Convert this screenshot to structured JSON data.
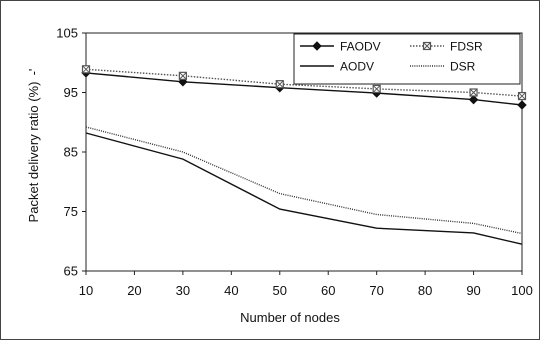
{
  "chart_data": {
    "type": "line",
    "xlabel": "Number of nodes",
    "ylabel": "Packet delivery ratio (%)",
    "ylabel_suffix": "-'",
    "x": [
      10,
      30,
      50,
      70,
      90,
      100
    ],
    "xticks": [
      "10",
      "20",
      "30",
      "40",
      "50",
      "60",
      "70",
      "80",
      "90",
      "100"
    ],
    "xtick_values": [
      10,
      20,
      30,
      40,
      50,
      60,
      70,
      80,
      90,
      100
    ],
    "yticks": [
      "65",
      "75",
      "85",
      "95",
      "105"
    ],
    "ytick_values": [
      65,
      75,
      85,
      95,
      105
    ],
    "xlim": [
      10,
      100
    ],
    "ylim": [
      65,
      105
    ],
    "grid": "none",
    "legend_position": "top-right",
    "series": [
      {
        "name": "FAODV",
        "values": [
          98.3,
          96.8,
          95.8,
          94.9,
          93.8,
          92.9
        ],
        "color": "#111111",
        "dash": "",
        "marker": "diamond"
      },
      {
        "name": "FDSR",
        "values": [
          98.9,
          97.8,
          96.4,
          95.6,
          95.0,
          94.4
        ],
        "color": "#555555",
        "dash": "1.5,1.5",
        "marker": "square-x"
      },
      {
        "name": "AODV",
        "values": [
          88.2,
          83.8,
          75.4,
          72.2,
          71.4,
          69.5
        ],
        "color": "#111111",
        "dash": "",
        "marker": "none"
      },
      {
        "name": "DSR",
        "values": [
          89.2,
          85.0,
          78.0,
          74.5,
          73.0,
          71.3
        ],
        "color": "#333333",
        "dash": "1,1.2",
        "marker": "none"
      }
    ]
  }
}
